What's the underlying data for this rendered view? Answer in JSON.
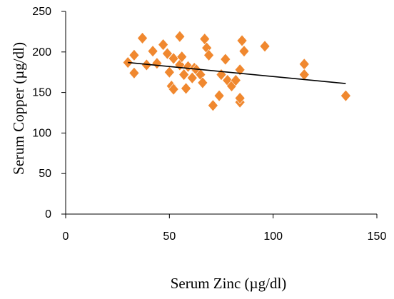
{
  "chart_data": {
    "type": "scatter",
    "title": "",
    "xlabel": "Serum Zinc (µg/dl)",
    "ylabel": "Serum Copper (µg/dl)",
    "xlim": [
      0,
      150
    ],
    "ylim": [
      0,
      250
    ],
    "x_ticks": [
      "0",
      "50",
      "100",
      "150"
    ],
    "y_ticks": [
      "0",
      "50",
      "100",
      "150",
      "200",
      "250"
    ],
    "grid": false,
    "legend": "none",
    "marker": "diamond",
    "marker_color": "#F0882F",
    "trendline": {
      "color": "#000000",
      "x": [
        30,
        135
      ],
      "y": [
        187,
        161
      ]
    },
    "points": [
      [
        30,
        187
      ],
      [
        33,
        196
      ],
      [
        33,
        174
      ],
      [
        37,
        217
      ],
      [
        39,
        184
      ],
      [
        42,
        201
      ],
      [
        44,
        186
      ],
      [
        47,
        209
      ],
      [
        49,
        198
      ],
      [
        50,
        175
      ],
      [
        51,
        158
      ],
      [
        52,
        154
      ],
      [
        52,
        192
      ],
      [
        55,
        219
      ],
      [
        55,
        184
      ],
      [
        56,
        194
      ],
      [
        57,
        172
      ],
      [
        58,
        155
      ],
      [
        59,
        182
      ],
      [
        61,
        168
      ],
      [
        62,
        180
      ],
      [
        63,
        178
      ],
      [
        65,
        172
      ],
      [
        66,
        162
      ],
      [
        67,
        216
      ],
      [
        68,
        205
      ],
      [
        69,
        196
      ],
      [
        71,
        134
      ],
      [
        74,
        146
      ],
      [
        75,
        172
      ],
      [
        77,
        191
      ],
      [
        78,
        165
      ],
      [
        80,
        158
      ],
      [
        82,
        165
      ],
      [
        84,
        138
      ],
      [
        84,
        143
      ],
      [
        84,
        178
      ],
      [
        85,
        214
      ],
      [
        86,
        201
      ],
      [
        96,
        207
      ],
      [
        115,
        185
      ],
      [
        115,
        172
      ],
      [
        135,
        146
      ]
    ]
  }
}
